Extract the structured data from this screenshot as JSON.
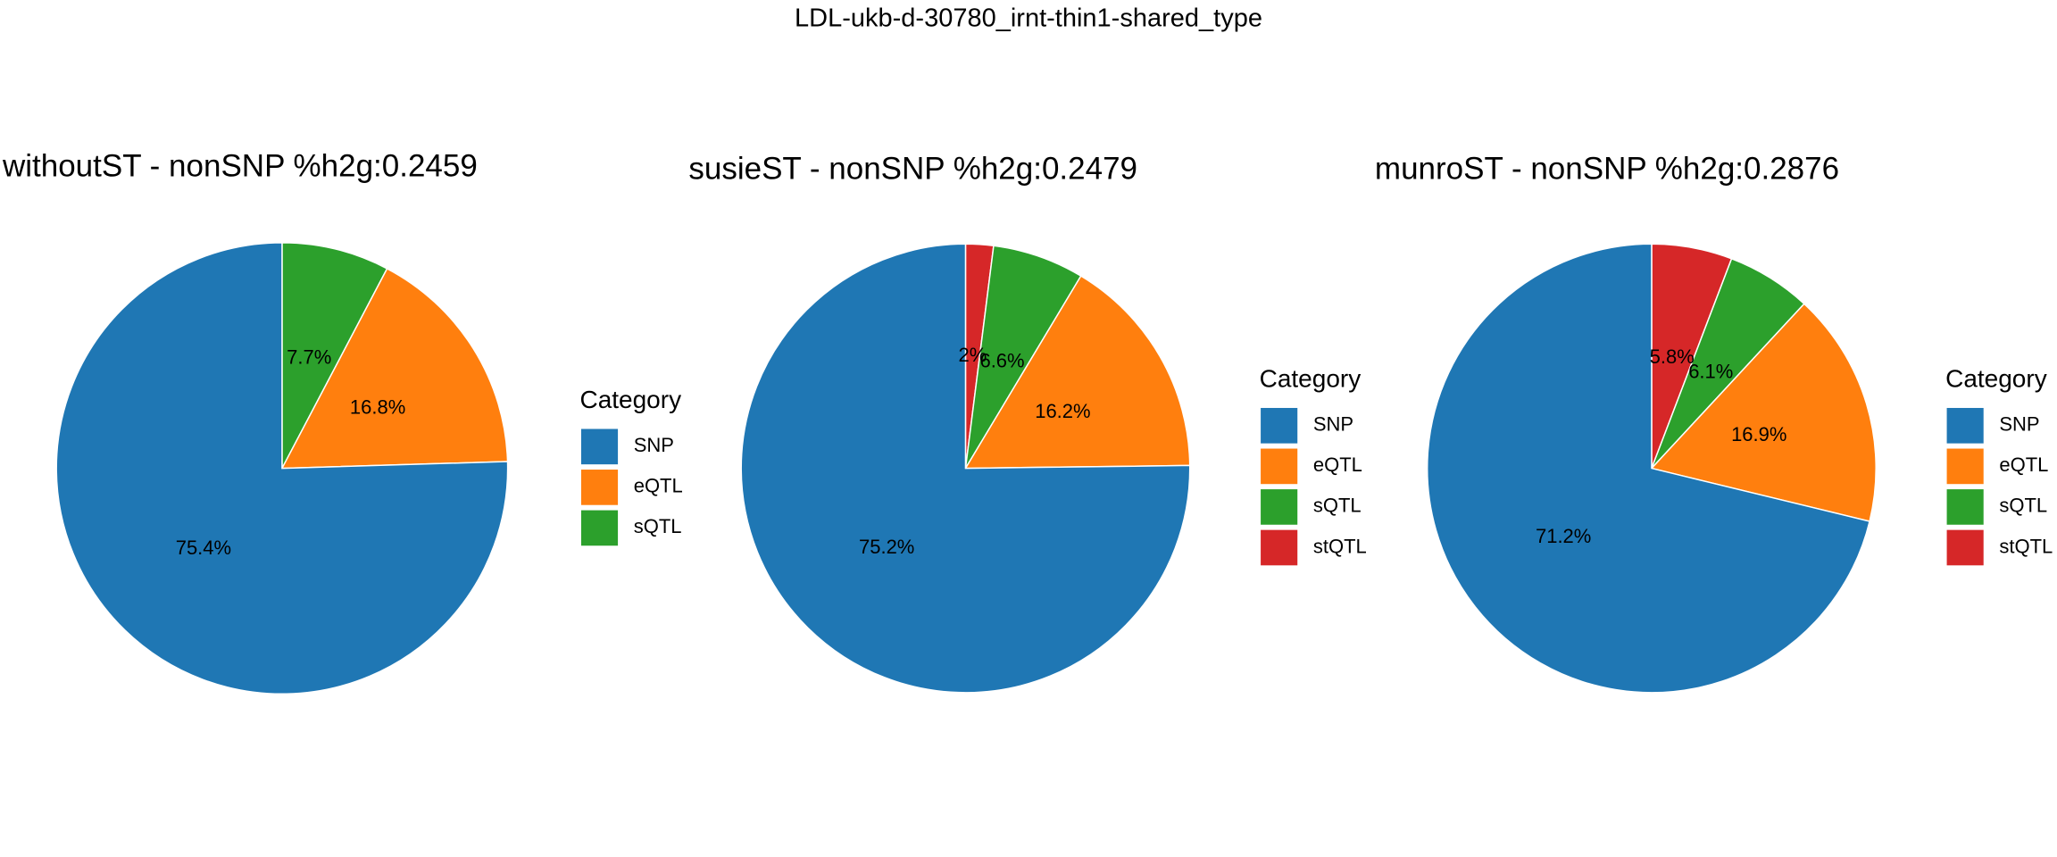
{
  "title": "LDL-ukb-d-30780_irnt-thin1-shared_type",
  "chart_data": [
    {
      "type": "pie",
      "title": "withoutST - nonSNP %h2g:0.2459",
      "legend_title": "Category",
      "categories": [
        "SNP",
        "eQTL",
        "sQTL"
      ],
      "values": [
        75.4,
        16.8,
        7.7
      ],
      "value_labels": [
        "75.4%",
        "16.8%",
        "7.7%"
      ],
      "colors": [
        "#1f77b4",
        "#ff7f0e",
        "#2ca02c"
      ]
    },
    {
      "type": "pie",
      "title": "susieST - nonSNP %h2g:0.2479",
      "legend_title": "Category",
      "categories": [
        "SNP",
        "eQTL",
        "sQTL",
        "stQTL"
      ],
      "values": [
        75.2,
        16.2,
        6.6,
        2
      ],
      "value_labels": [
        "75.2%",
        "16.2%",
        "6.6%",
        "2%"
      ],
      "colors": [
        "#1f77b4",
        "#ff7f0e",
        "#2ca02c",
        "#d62728"
      ]
    },
    {
      "type": "pie",
      "title": "munroST - nonSNP %h2g:0.2876",
      "legend_title": "Category",
      "categories": [
        "SNP",
        "eQTL",
        "sQTL",
        "stQTL"
      ],
      "values": [
        71.2,
        16.9,
        6.1,
        5.8
      ],
      "value_labels": [
        "71.2%",
        "16.9%",
        "6.1%",
        "5.8%"
      ],
      "colors": [
        "#1f77b4",
        "#ff7f0e",
        "#2ca02c",
        "#d62728"
      ]
    }
  ]
}
